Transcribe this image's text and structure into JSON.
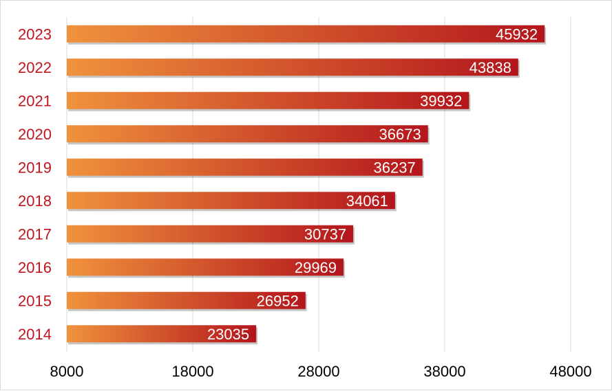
{
  "chart_data": {
    "type": "bar",
    "orientation": "horizontal",
    "categories": [
      "2023",
      "2022",
      "2021",
      "2020",
      "2019",
      "2018",
      "2017",
      "2016",
      "2015",
      "2014"
    ],
    "values": [
      45932,
      43838,
      39932,
      36673,
      36237,
      34061,
      30737,
      29969,
      26952,
      23035
    ],
    "xlim": [
      8000,
      48000
    ],
    "x_ticks": [
      "8000",
      "18000",
      "28000",
      "38000",
      "48000"
    ],
    "title": "",
    "xlabel": "",
    "ylabel": "",
    "grid": "vertical",
    "legend": "none",
    "data_labels": "inside-end",
    "colors": {
      "bar_start": "#f0923c",
      "bar_end": "#b3151c",
      "category_label": "#c0141e",
      "grid": "#d9d9d9"
    }
  }
}
